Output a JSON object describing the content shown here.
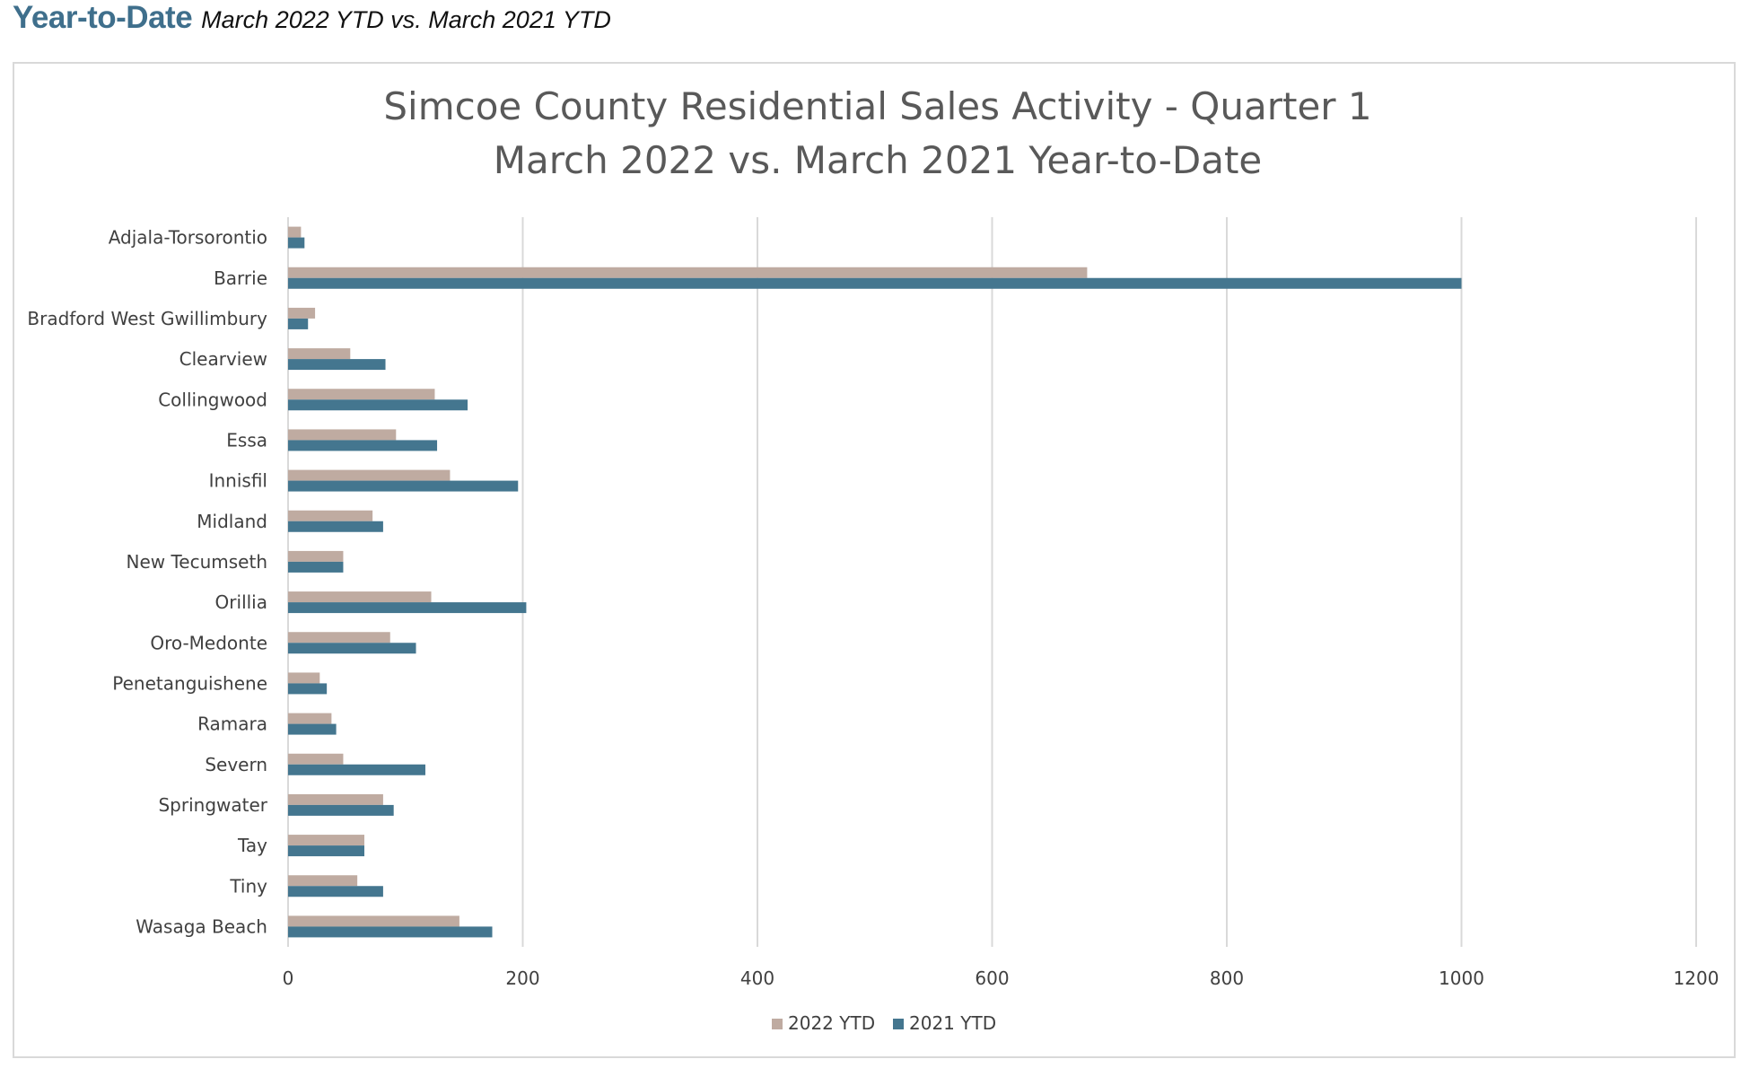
{
  "header": {
    "title": "Year-to-Date",
    "subtitle": "March 2022 YTD vs. March 2021 YTD"
  },
  "colors": {
    "series_2022": "#bfaba1",
    "series_2021": "#44768f",
    "header_accent": "#3f6f8c",
    "grid": "#d9d9d9"
  },
  "chart_data": {
    "type": "bar",
    "orientation": "horizontal",
    "title": [
      "Simcoe County Residential Sales Activity - Quarter 1",
      "March 2022 vs. March 2021 Year-to-Date"
    ],
    "categories": [
      "Adjala-Torsorontio",
      "Barrie",
      "Bradford West Gwillimbury",
      "Clearview",
      "Collingwood",
      "Essa",
      "Innisfil",
      "Midland",
      "New Tecumseth",
      "Orillia",
      "Oro-Medonte",
      "Penetanguishene",
      "Ramara",
      "Severn",
      "Springwater",
      "Tay",
      "Tiny",
      "Wasaga Beach"
    ],
    "series": [
      {
        "name": "2022 YTD",
        "color": "#bfaba1",
        "values": [
          11,
          681,
          23,
          53,
          125,
          92,
          138,
          72,
          47,
          122,
          87,
          27,
          37,
          47,
          81,
          65,
          59,
          146
        ]
      },
      {
        "name": "2021 YTD",
        "color": "#44768f",
        "values": [
          14,
          1000,
          17,
          83,
          153,
          127,
          196,
          81,
          47,
          203,
          109,
          33,
          41,
          117,
          90,
          65,
          81,
          174
        ]
      }
    ],
    "xlim": [
      0,
      1200
    ],
    "xticks": [
      "0",
      "200",
      "400",
      "600",
      "800",
      "1000",
      "1200"
    ],
    "xlabel": "",
    "ylabel": "",
    "grid": "vertical",
    "legend": "bottom"
  }
}
